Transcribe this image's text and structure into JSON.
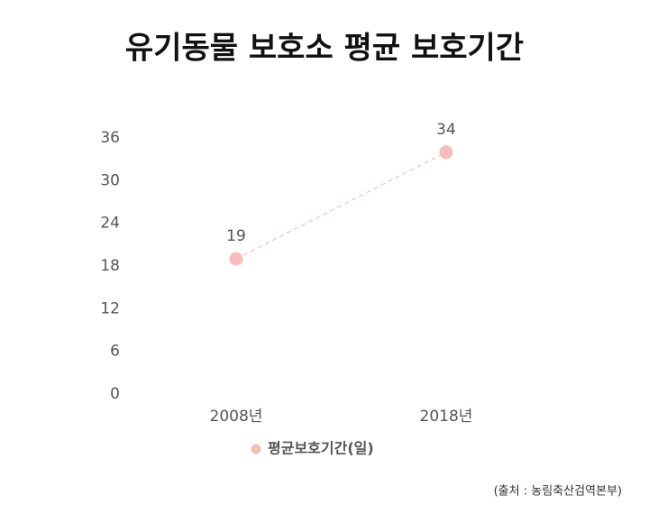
{
  "chart_data": {
    "type": "line",
    "title": "유기동물 보호소 평균 보호기간",
    "categories": [
      "2008년",
      "2018년"
    ],
    "series": [
      {
        "name": "평균보호기간(일)",
        "color": "#f7bcbc",
        "values": [
          19,
          34
        ]
      }
    ],
    "ylim": [
      0,
      36
    ],
    "yticks": [
      0,
      6,
      12,
      18,
      24,
      30,
      36
    ],
    "grid": false,
    "legend": "bottom",
    "source": "(출처 : 농림축산검역본부)"
  }
}
